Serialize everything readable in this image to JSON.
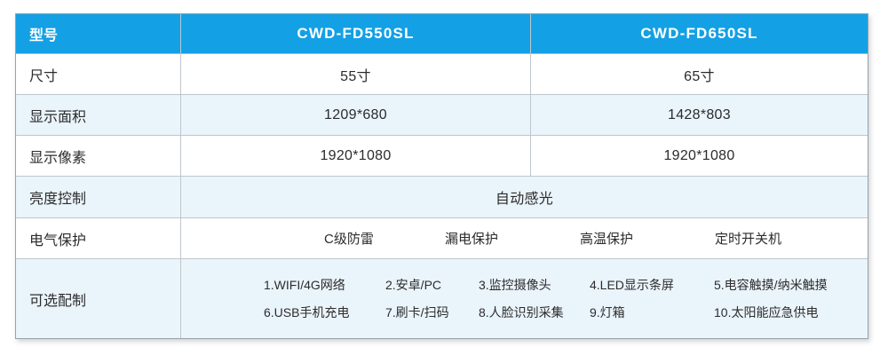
{
  "spec": {
    "header": {
      "model_label": "型号",
      "model_a": "CWD-FD550SL",
      "model_b": "CWD-FD650SL"
    },
    "size": {
      "label": "尺寸",
      "a": "55寸",
      "b": "65寸"
    },
    "area": {
      "label": "显示面积",
      "a": "1209*680",
      "b": "1428*803"
    },
    "pixels": {
      "label": "显示像素",
      "a": "1920*1080",
      "b": "1920*1080"
    },
    "brightness": {
      "label": "亮度控制",
      "value": "自动感光"
    },
    "electrical": {
      "label": "电气保护",
      "items": [
        "C级防雷",
        "漏电保护",
        "高温保护",
        "定时开关机"
      ]
    },
    "optional": {
      "label": "可选配制",
      "line1": [
        "1.WIFI/4G网络",
        "2.安卓/PC",
        "3.监控摄像头",
        "4.LED显示条屏",
        "5.电容触摸/纳米触摸"
      ],
      "line2": [
        "6.USB手机充电",
        "7.刷卡/扫码",
        "8.人脸识别采集",
        "9.灯箱",
        "10.太阳能应急供电"
      ]
    }
  },
  "colors": {
    "header_bg": "#14A0E4",
    "header_text": "#FFFFFF",
    "alt_row_bg": "#EAF4FB",
    "border": "#BFC6CC",
    "body_text": "#2C2C2C"
  }
}
